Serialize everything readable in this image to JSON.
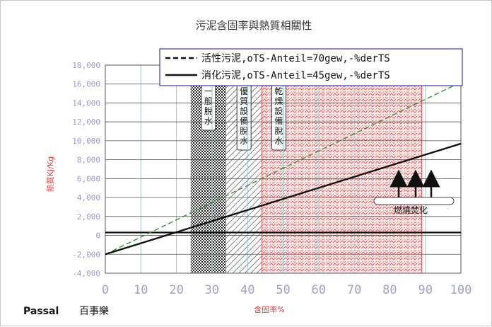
{
  "brand": {
    "name": "Passal",
    "name_cn": "百事樂"
  },
  "chart_data": {
    "type": "line",
    "title": "污泥含固率與熱質相關性",
    "xlabel": "含固率%",
    "ylabel": "熱質KJ/Kg",
    "xlim": [
      0,
      100
    ],
    "ylim": [
      -4000,
      18000
    ],
    "x_ticks": [
      "0",
      "10",
      "20",
      "30",
      "40",
      "50",
      "60",
      "70",
      "80",
      "90",
      "100"
    ],
    "y_ticks": [
      "18,000",
      "16,000",
      "14,000",
      "12,000",
      "10,000",
      "8,000",
      "6,000",
      "4,000",
      "2,000",
      "0",
      "-2,000",
      "-4,000"
    ],
    "grid": true,
    "legend_position": "top-right",
    "series": [
      {
        "name": "活性污泥,oTS-Anteil=70gew,-%derTS",
        "style": "dashed",
        "color": "#3a8a3a",
        "x": [
          0,
          100
        ],
        "y": [
          -2000,
          16200
        ]
      },
      {
        "name": "消化污泥,oTS-Anteil=45gew,-%derTS",
        "style": "solid",
        "color": "#111111",
        "x": [
          0,
          100
        ],
        "y": [
          -2000,
          9700
        ]
      }
    ],
    "reference_line": {
      "y": 300
    },
    "zones": [
      {
        "label": "一般脫水",
        "x_range": [
          24,
          34
        ],
        "fill": "dark-hatch"
      },
      {
        "label": "優質設備脫水",
        "x_range": [
          34,
          44
        ],
        "fill": "diagonal-hatch"
      },
      {
        "label": "乾燥設備脫水",
        "x_range": [
          44,
          89
        ],
        "fill": "red-hatch"
      }
    ],
    "annotation": {
      "label": "燃燒焚化"
    }
  }
}
